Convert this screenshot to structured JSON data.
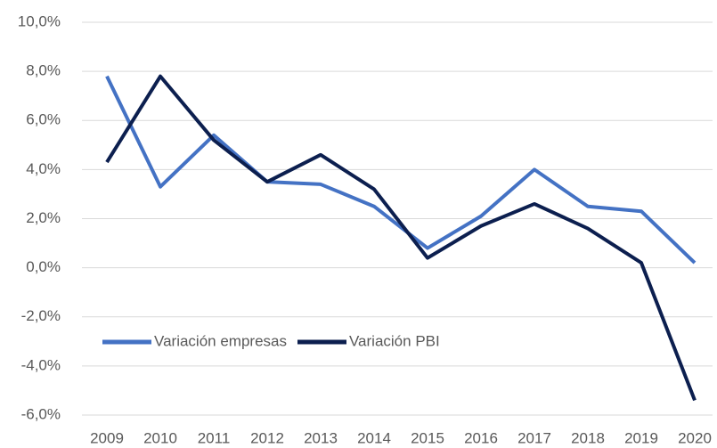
{
  "chart_data": {
    "type": "line",
    "categories": [
      "2009",
      "2010",
      "2011",
      "2012",
      "2013",
      "2014",
      "2015",
      "2016",
      "2017",
      "2018",
      "2019",
      "2020"
    ],
    "series": [
      {
        "name": "Variación empresas",
        "color": "#4472c4",
        "values": [
          7.8,
          3.3,
          5.4,
          3.5,
          3.4,
          2.5,
          0.8,
          2.1,
          4.0,
          2.5,
          2.3,
          0.2
        ]
      },
      {
        "name": "Variación PBI",
        "color": "#0c1f4f",
        "values": [
          4.3,
          7.8,
          5.2,
          3.5,
          4.6,
          3.2,
          0.4,
          1.7,
          2.6,
          1.6,
          0.2,
          -5.4
        ]
      }
    ],
    "ylim": [
      -6,
      10
    ],
    "yticks": [
      {
        "value": -6,
        "label": "-6,0%"
      },
      {
        "value": -4,
        "label": "-4,0%"
      },
      {
        "value": -2,
        "label": "-2,0%"
      },
      {
        "value": 0,
        "label": "0,0%"
      },
      {
        "value": 2,
        "label": "2,0%"
      },
      {
        "value": 4,
        "label": "4,0%"
      },
      {
        "value": 6,
        "label": "6,0%"
      },
      {
        "value": 8,
        "label": "8,0%"
      },
      {
        "value": 10,
        "label": "10,0%"
      }
    ],
    "grid": true,
    "legend": "lower-left"
  }
}
